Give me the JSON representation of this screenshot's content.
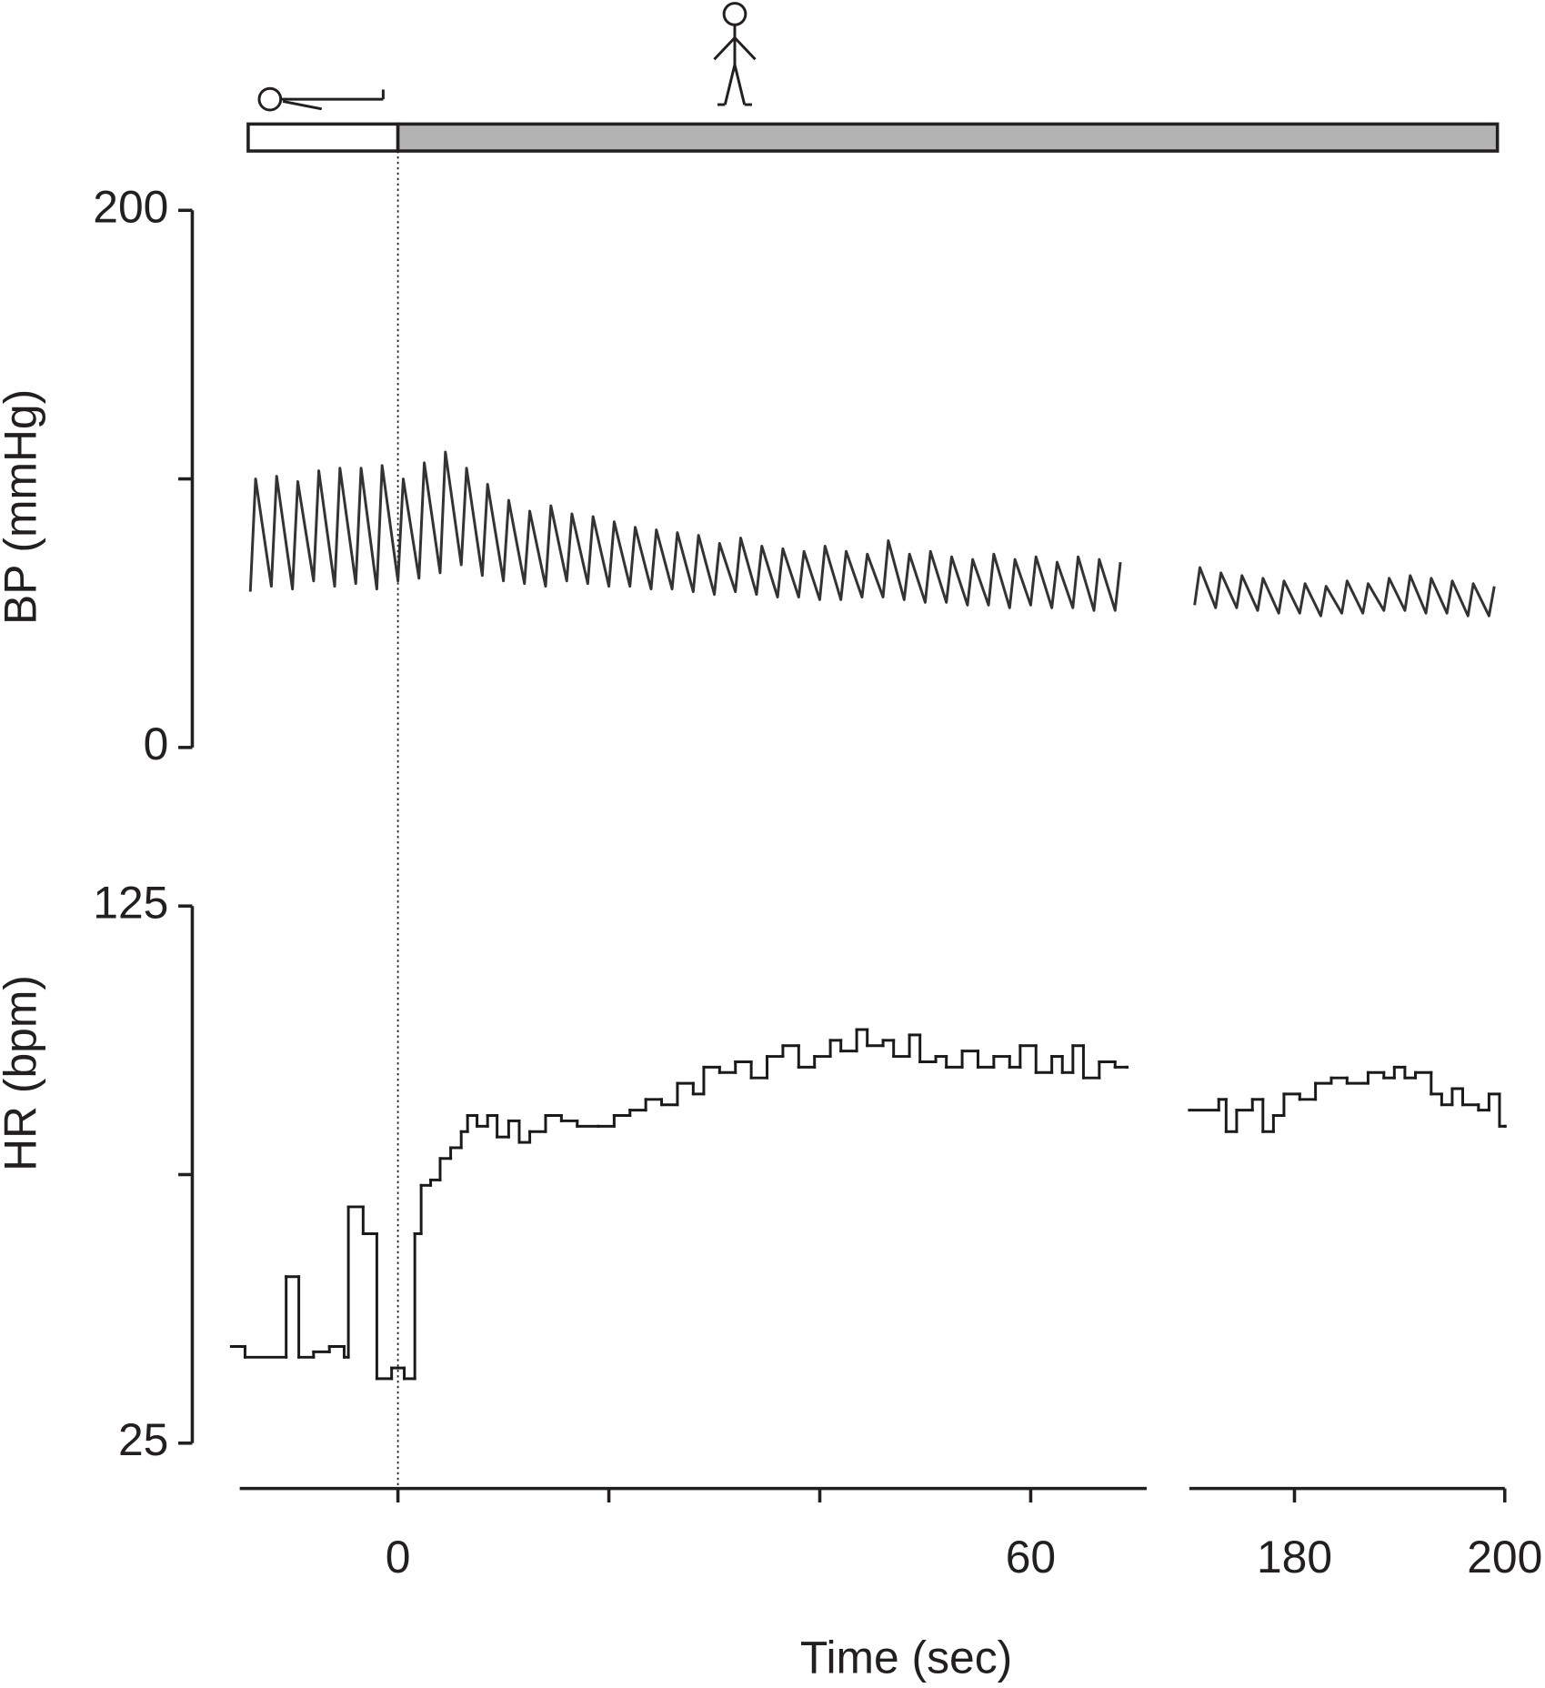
{
  "chart_data": [
    {
      "type": "line",
      "ylabel": "BP (mmHg)",
      "ylim": [
        0,
        200
      ],
      "yticks": [
        0,
        200
      ],
      "yminor_ticks": [
        100
      ],
      "color": "#333333",
      "phases": [
        {
          "start": -14.2,
          "end": 0,
          "color": "#ffffff"
        },
        {
          "start": 0,
          "end": 199.3,
          "color": "#b3b3b3"
        }
      ],
      "vline": 0,
      "x": [
        -14,
        -13.5,
        -12,
        -11.5,
        -10,
        -9.5,
        -8,
        -7.5,
        -6,
        -5.5,
        -4,
        -3.5,
        -2,
        -1.5,
        0,
        0.5,
        2,
        2.5,
        4,
        4.5,
        6,
        6.5,
        8,
        8.5,
        10,
        10.5,
        12,
        12.5,
        14,
        14.5,
        16,
        16.5,
        18,
        18.5,
        20,
        20.5,
        22,
        22.5,
        24,
        24.5,
        26,
        26.5,
        28,
        28.5,
        30,
        30.5,
        32,
        32.5,
        34,
        34.5,
        36,
        36.5,
        38,
        38.5,
        40,
        40.5,
        42,
        42.5,
        44,
        44.5,
        46,
        46.5,
        48,
        48.5,
        50,
        50.5,
        52,
        52.5,
        54,
        54.5,
        56,
        56.5,
        58,
        58.5,
        60,
        60.5,
        62,
        62.5,
        64,
        64.5,
        66,
        66.5,
        68,
        68.5,
        null,
        170.5,
        171,
        172.5,
        173,
        174.5,
        175,
        176.5,
        177,
        178.5,
        179,
        180.5,
        181,
        182.5,
        183,
        184.5,
        185,
        186.5,
        187,
        188.5,
        189,
        190.5,
        191,
        192.5,
        193,
        194.5,
        195,
        196.5,
        197,
        198.5,
        199
      ],
      "values": [
        58,
        100,
        60,
        101,
        59,
        99,
        62,
        103,
        60,
        104,
        61,
        104,
        59,
        105,
        62,
        100,
        63,
        106,
        65,
        110,
        68,
        104,
        64,
        98,
        62,
        92,
        61,
        88,
        60,
        90,
        62,
        87,
        61,
        86,
        60,
        84,
        60,
        82,
        59,
        81,
        59,
        80,
        58,
        79,
        57,
        76,
        58,
        78,
        57,
        75,
        56,
        74,
        56,
        73,
        55,
        75,
        55,
        73,
        56,
        72,
        56,
        77,
        55,
        72,
        54,
        73,
        54,
        71,
        53,
        70,
        53,
        72,
        52,
        70,
        53,
        71,
        52,
        69,
        52,
        71,
        51,
        70,
        51,
        69,
        null,
        53,
        67,
        52,
        65,
        52,
        64,
        51,
        63,
        50,
        62,
        50,
        61,
        49,
        60,
        50,
        62,
        50,
        61,
        51,
        63,
        51,
        64,
        50,
        63,
        50,
        62,
        49,
        61,
        49,
        60
      ]
    },
    {
      "type": "step",
      "ylabel": "HR (bpm)",
      "ylim": [
        25,
        125
      ],
      "yticks": [
        25,
        125
      ],
      "yminor_ticks": [
        75
      ],
      "color": "#1a1a1a",
      "xlabel": "Time (sec)",
      "xsegments": [
        [
          -15,
          71
        ],
        [
          170,
          200
        ]
      ],
      "xticks": [
        0,
        60,
        180,
        200
      ],
      "xminor_ticks": [
        20,
        40
      ],
      "x": [
        -15.8,
        -14.5,
        -10.6,
        -9.4,
        -8,
        -6.5,
        -5.1,
        -4.7,
        -3.3,
        -2,
        -0.6,
        0.6,
        1.6,
        2.2,
        3.1,
        4,
        5,
        6,
        6.6,
        7.5,
        8.5,
        9.4,
        10.5,
        11.5,
        12.5,
        14,
        15.5,
        17,
        19,
        20.5,
        22,
        23.5,
        25,
        26.5,
        28,
        29,
        30.5,
        32,
        33.5,
        35,
        36.5,
        38,
        39.5,
        41,
        42,
        43.5,
        44.5,
        46,
        47,
        48.5,
        49.5,
        51,
        52,
        53.5,
        55,
        56.5,
        58,
        59,
        60.5,
        62,
        63,
        64,
        65,
        66.5,
        68,
        69.1,
        null,
        170,
        172.8,
        173.5,
        174.5,
        176,
        177,
        178,
        179,
        180.5,
        182,
        183.5,
        185,
        187,
        188.5,
        189.5,
        190.5,
        191.5,
        193,
        194,
        195,
        196,
        197.5,
        198.5,
        199.5,
        200
      ],
      "values": [
        43,
        41,
        56,
        41,
        42,
        43,
        41,
        69,
        64,
        37,
        39,
        37,
        64,
        73,
        74,
        78,
        80,
        83,
        86,
        84,
        86,
        82,
        85,
        81,
        83,
        86,
        85,
        84,
        84,
        86,
        87,
        89,
        88,
        92,
        90,
        95,
        94,
        96,
        93,
        97,
        99,
        95,
        97,
        100,
        98,
        102,
        99,
        100,
        97,
        101,
        96,
        97,
        95,
        98,
        95,
        97,
        95,
        99,
        94,
        97,
        94,
        99,
        93,
        96,
        95,
        95,
        null,
        87,
        89,
        83,
        87,
        89,
        83,
        86,
        90,
        89,
        92,
        93,
        92,
        94,
        93,
        95,
        93,
        94,
        90,
        88,
        91,
        88,
        87,
        90,
        84,
        84
      ]
    }
  ]
}
